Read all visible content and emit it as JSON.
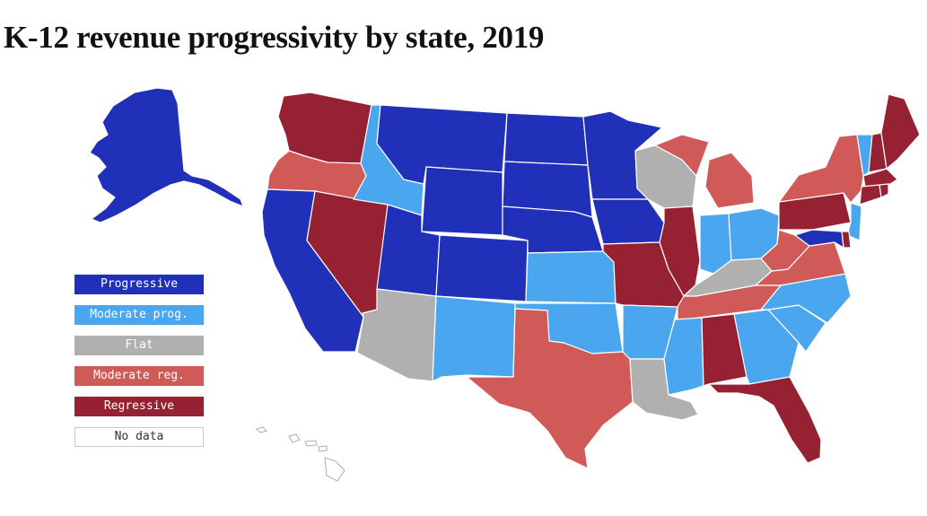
{
  "title": "K-12 revenue progressivity by state, 2019",
  "colors": {
    "progressive": "#2130b8",
    "moderate_prog": "#4aa6ee",
    "flat": "#b0b0b0",
    "moderate_reg": "#d05a57",
    "regressive": "#952132",
    "no_data": "#ffffff"
  },
  "legend": [
    {
      "category": "progressive",
      "label": "Progressive"
    },
    {
      "category": "moderate_prog",
      "label": "Moderate prog."
    },
    {
      "category": "flat",
      "label": "Flat"
    },
    {
      "category": "moderate_reg",
      "label": "Moderate reg."
    },
    {
      "category": "regressive",
      "label": "Regressive"
    },
    {
      "category": "no_data",
      "label": "No data"
    }
  ],
  "states": {
    "WA": "regressive",
    "OR": "moderate_reg",
    "CA": "progressive",
    "NV": "regressive",
    "ID": "moderate_prog",
    "MT": "progressive",
    "WY": "progressive",
    "UT": "progressive",
    "AZ": "flat",
    "CO": "progressive",
    "NM": "moderate_prog",
    "ND": "progressive",
    "SD": "progressive",
    "NE": "progressive",
    "KS": "moderate_prog",
    "OK": "moderate_prog",
    "TX": "moderate_reg",
    "MN": "progressive",
    "IA": "progressive",
    "MO": "regressive",
    "AR": "moderate_prog",
    "LA": "flat",
    "WI": "flat",
    "IL": "regressive",
    "MI": "moderate_reg",
    "IN": "moderate_prog",
    "OH": "moderate_prog",
    "KY": "flat",
    "TN": "moderate_reg",
    "MS": "moderate_prog",
    "AL": "regressive",
    "GA": "moderate_prog",
    "FL": "regressive",
    "SC": "moderate_prog",
    "NC": "moderate_prog",
    "VA": "moderate_reg",
    "WV": "moderate_reg",
    "PA": "regressive",
    "NY": "moderate_reg",
    "VT": "moderate_prog",
    "NH": "regressive",
    "ME": "regressive",
    "MA": "regressive",
    "CT": "regressive",
    "RI": "regressive",
    "NJ": "moderate_prog",
    "DE": "regressive",
    "MD": "progressive",
    "AK": "progressive",
    "HI": "no_data"
  }
}
